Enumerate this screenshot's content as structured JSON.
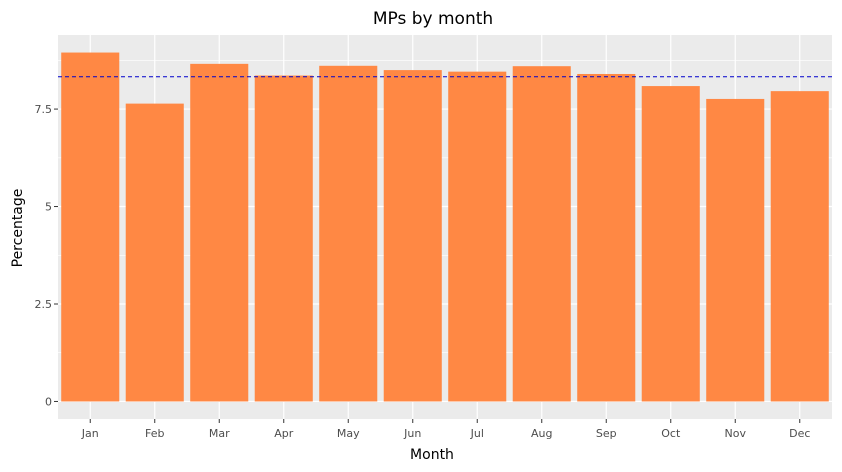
{
  "chart_data": {
    "type": "bar",
    "title": "MPs by month",
    "xlabel": "Month",
    "ylabel": "Percentage",
    "categories": [
      "Jan",
      "Feb",
      "Mar",
      "Apr",
      "May",
      "Jun",
      "Jul",
      "Aug",
      "Sep",
      "Oct",
      "Nov",
      "Dec"
    ],
    "values": [
      8.95,
      7.64,
      8.66,
      8.36,
      8.61,
      8.5,
      8.46,
      8.6,
      8.4,
      8.09,
      7.76,
      7.96
    ],
    "y_ticks": [
      0,
      2.5,
      5,
      7.5
    ],
    "y_tick_labels": [
      "0",
      "2.5",
      "5",
      "7.5"
    ],
    "ylim": [
      -0.45,
      9.4
    ],
    "reference_line": {
      "value": 8.33,
      "style": "dashed",
      "color": "#0000cc"
    },
    "bar_color": "#ff8844",
    "panel_background": "#ebebeb",
    "grid_color": "#ffffff",
    "grid": true,
    "legend": "none"
  }
}
